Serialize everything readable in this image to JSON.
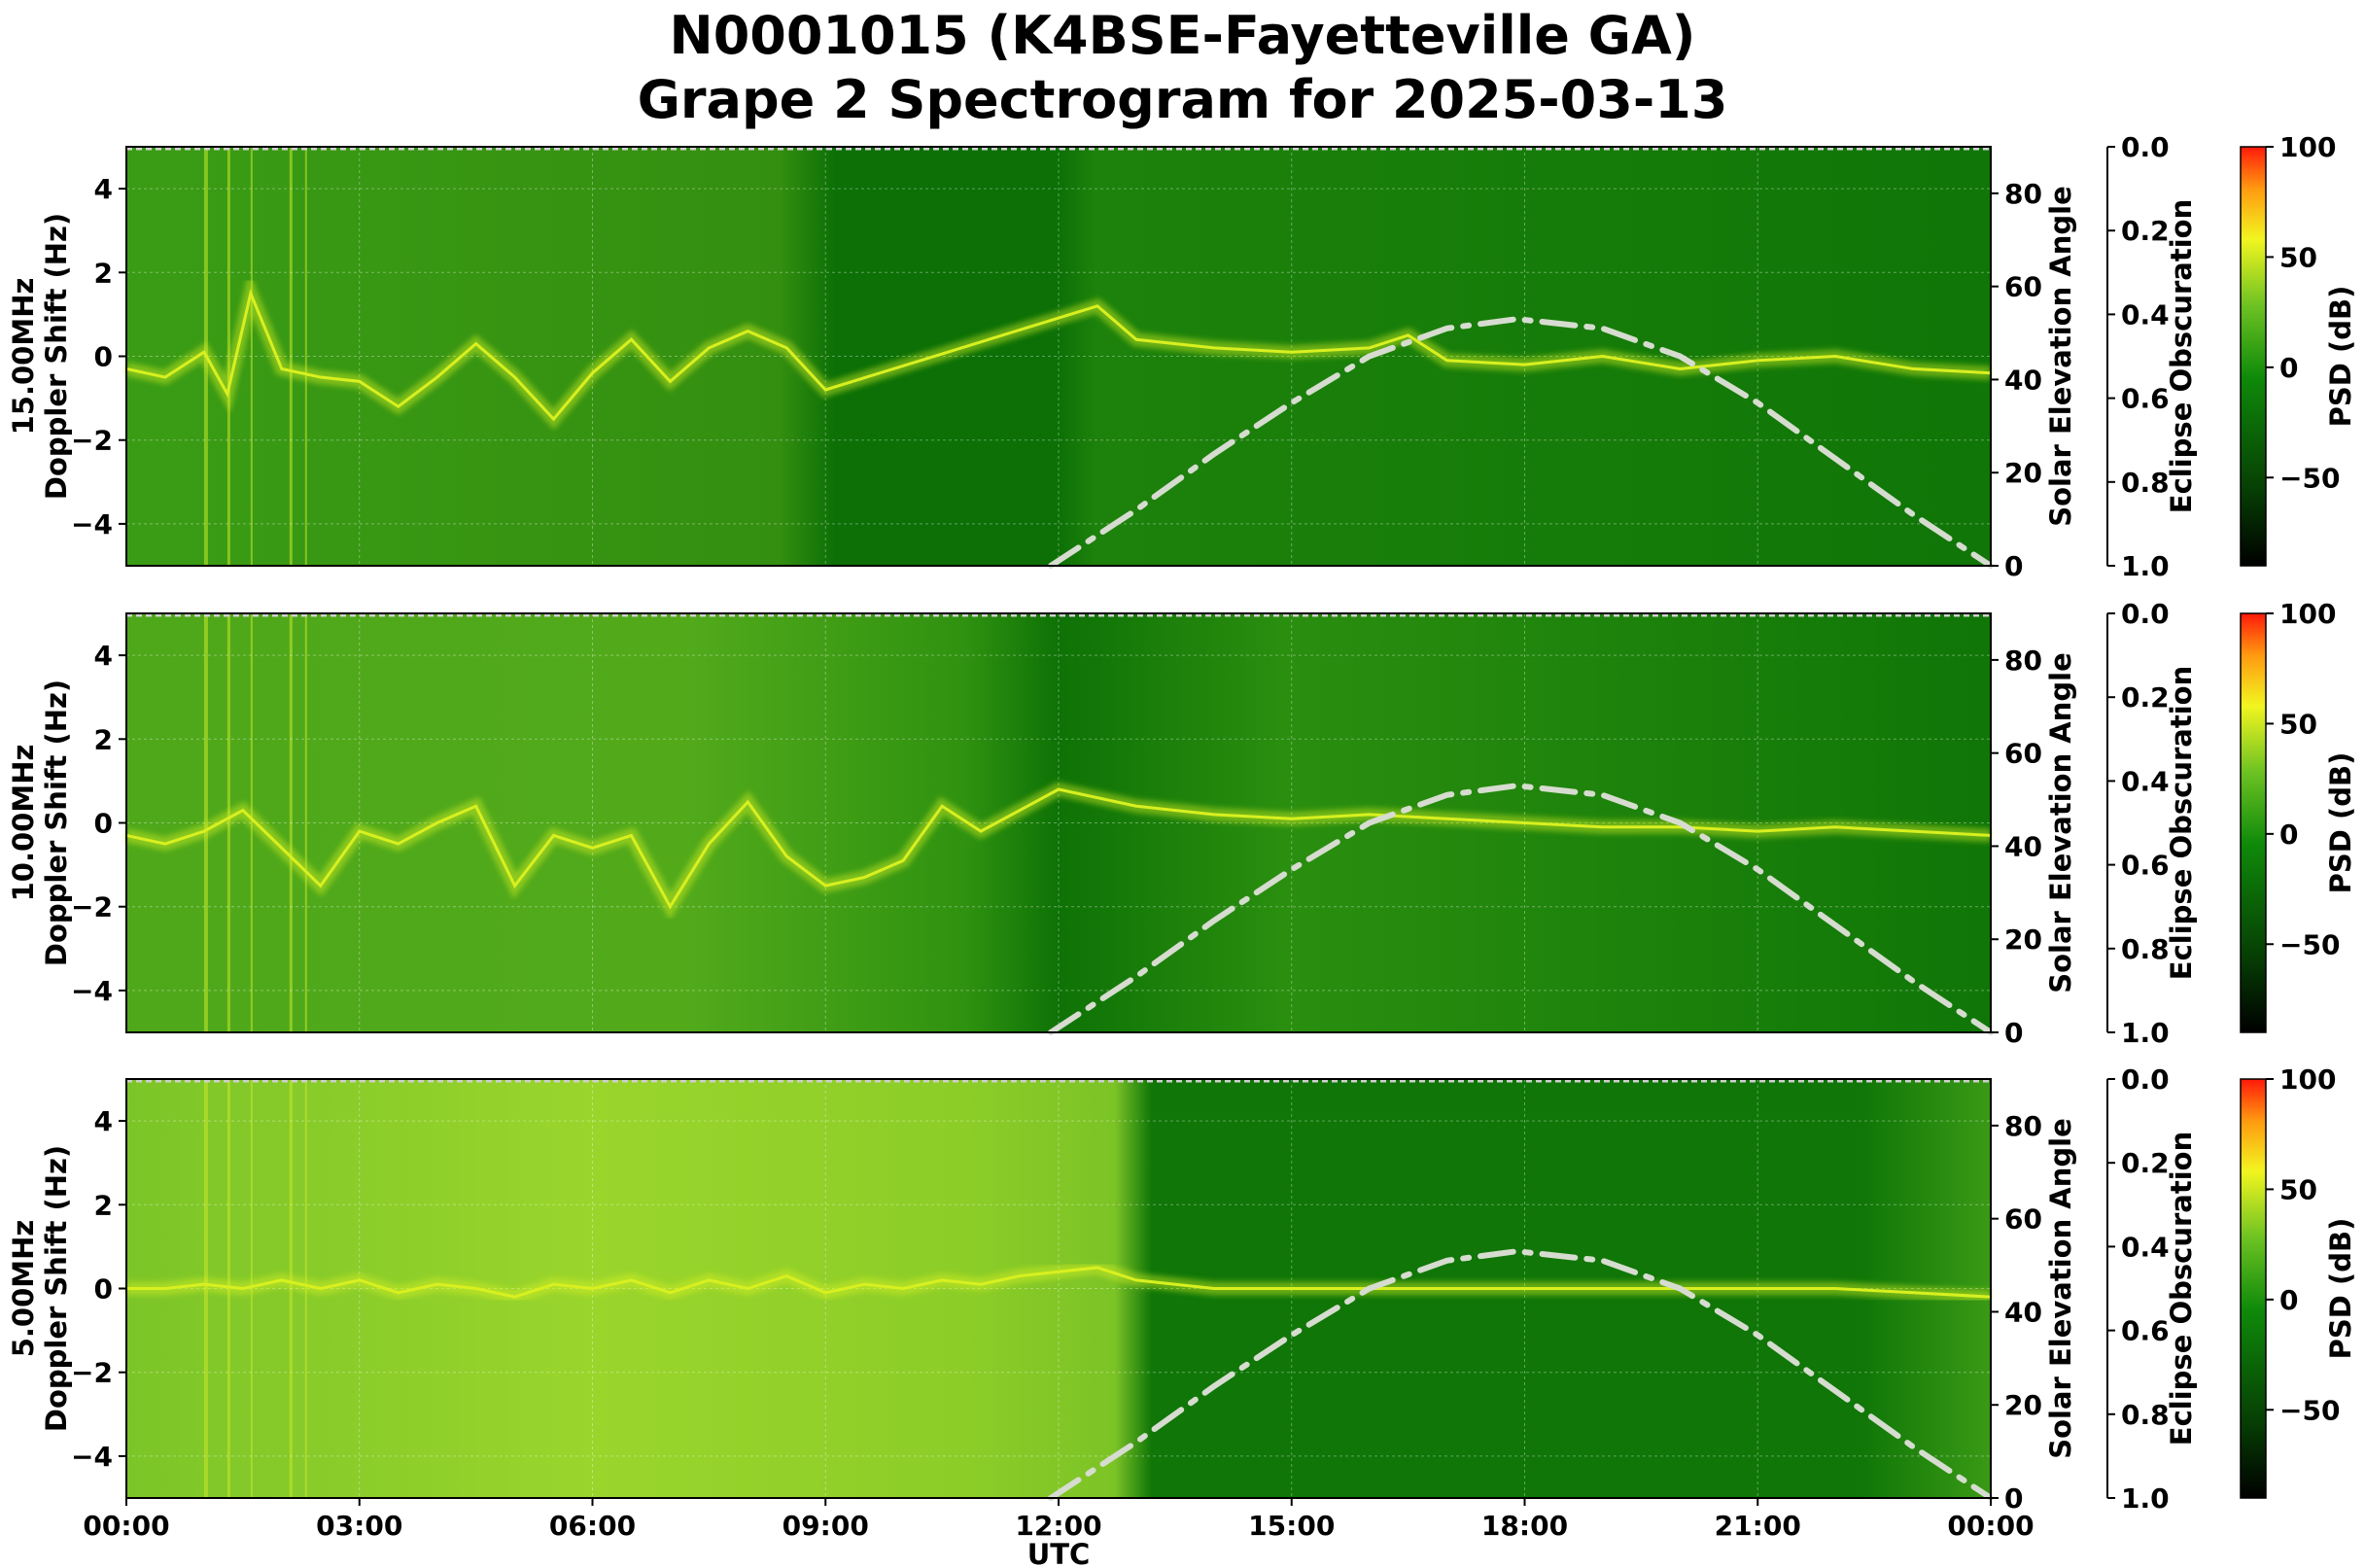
{
  "title": {
    "line1": "N0001015 (K4BSE-Fayetteville GA)",
    "line2": "Grape 2 Spectrogram for 2025-03-13"
  },
  "chart_data": {
    "type": "heatmap",
    "xlabel": "UTC",
    "x_ticks": [
      "00:00",
      "03:00",
      "06:00",
      "09:00",
      "12:00",
      "15:00",
      "18:00",
      "21:00",
      "00:00"
    ],
    "x_range_hours": [
      0,
      24
    ],
    "colors": {
      "background_low": "#0a6e06",
      "background_mid": "#2f9a10",
      "signal": "#d8f020",
      "hot": "#ff3010",
      "curve": "#d6dccf"
    },
    "panels": [
      {
        "ylabel": "15.00MHz\nDoppler Shift (Hz)",
        "ylim": [
          -5,
          5
        ],
        "y_ticks": [
          "4",
          "2",
          "0",
          "−2",
          "−4"
        ],
        "y_tick_values": [
          4,
          2,
          0,
          -2,
          -4
        ],
        "right_label": "Solar Elevation Angle",
        "right_ylim": [
          0,
          90
        ],
        "right_ticks": [
          "0",
          "20",
          "40",
          "60",
          "80"
        ],
        "right_tick_values": [
          0,
          20,
          40,
          60,
          80
        ],
        "eclipse_label": "Eclipse Obscuration",
        "eclipse_ticks": [
          "0.0",
          "0.2",
          "0.4",
          "0.6",
          "0.8",
          "1.0"
        ],
        "colorbar_label": "PSD (dB)",
        "colorbar_ticks": [
          "100",
          "50",
          "0",
          "−50"
        ],
        "colorbar_tick_values": [
          100,
          50,
          0,
          -50
        ],
        "colorbar_range": [
          -90,
          100
        ]
      },
      {
        "ylabel": "10.00MHz\nDoppler Shift (Hz)",
        "ylim": [
          -5,
          5
        ],
        "y_ticks": [
          "4",
          "2",
          "0",
          "−2",
          "−4"
        ],
        "y_tick_values": [
          4,
          2,
          0,
          -2,
          -4
        ],
        "right_label": "Solar Elevation Angle",
        "right_ylim": [
          0,
          90
        ],
        "right_ticks": [
          "0",
          "20",
          "40",
          "60",
          "80"
        ],
        "right_tick_values": [
          0,
          20,
          40,
          60,
          80
        ],
        "eclipse_label": "Eclipse Obscuration",
        "eclipse_ticks": [
          "0.0",
          "0.2",
          "0.4",
          "0.6",
          "0.8",
          "1.0"
        ],
        "colorbar_label": "PSD (dB)",
        "colorbar_ticks": [
          "100",
          "50",
          "0",
          "−50"
        ],
        "colorbar_tick_values": [
          100,
          50,
          0,
          -50
        ],
        "colorbar_range": [
          -90,
          100
        ]
      },
      {
        "ylabel": "5.00MHz\nDoppler Shift (Hz)",
        "ylim": [
          -5,
          5
        ],
        "y_ticks": [
          "4",
          "2",
          "0",
          "−2",
          "−4"
        ],
        "y_tick_values": [
          4,
          2,
          0,
          -2,
          -4
        ],
        "right_label": "Solar Elevation Angle",
        "right_ylim": [
          0,
          90
        ],
        "right_ticks": [
          "0",
          "20",
          "40",
          "60",
          "80"
        ],
        "right_tick_values": [
          0,
          20,
          40,
          60,
          80
        ],
        "eclipse_label": "Eclipse Obscuration",
        "eclipse_ticks": [
          "0.0",
          "0.2",
          "0.4",
          "0.6",
          "0.8",
          "1.0"
        ],
        "colorbar_label": "PSD (dB)",
        "colorbar_ticks": [
          "100",
          "50",
          "0",
          "−50"
        ],
        "colorbar_tick_values": [
          100,
          50,
          0,
          -50
        ],
        "colorbar_range": [
          -90,
          100
        ]
      }
    ],
    "solar_elevation": {
      "hours": [
        11.9,
        13,
        14,
        15,
        16,
        17,
        17.9,
        19,
        20,
        21,
        22,
        23,
        24
      ],
      "degrees": [
        0,
        12,
        24,
        35,
        45,
        51,
        53,
        51,
        45,
        35,
        23,
        11,
        0
      ]
    },
    "doppler_trace": {
      "15MHz": {
        "hours": [
          0,
          0.5,
          1,
          1.3,
          1.6,
          2,
          2.5,
          3,
          3.5,
          4,
          4.5,
          5,
          5.5,
          6,
          6.5,
          7,
          7.5,
          8,
          8.5,
          9,
          12.5,
          13,
          14,
          15,
          16,
          16.5,
          17,
          18,
          19,
          20,
          21,
          22,
          23,
          24
        ],
        "doppler": [
          -0.3,
          -0.5,
          0.1,
          -0.9,
          1.5,
          -0.3,
          -0.5,
          -0.6,
          -1.2,
          -0.5,
          0.3,
          -0.5,
          -1.5,
          -0.4,
          0.4,
          -0.6,
          0.2,
          0.6,
          0.2,
          -0.8,
          1.2,
          0.4,
          0.2,
          0.1,
          0.2,
          0.5,
          -0.1,
          -0.2,
          0.0,
          -0.3,
          -0.1,
          0.0,
          -0.3,
          -0.4
        ]
      },
      "10MHz": {
        "hours": [
          0,
          0.5,
          1,
          1.5,
          2,
          2.5,
          3,
          3.5,
          4,
          4.5,
          5,
          5.5,
          6,
          6.5,
          7,
          7.5,
          8,
          8.5,
          9,
          9.5,
          10,
          10.5,
          11,
          11.5,
          12,
          13,
          14,
          15,
          16,
          17,
          18,
          19,
          20,
          21,
          22,
          23,
          24
        ],
        "doppler": [
          -0.3,
          -0.5,
          -0.2,
          0.3,
          -0.6,
          -1.5,
          -0.2,
          -0.5,
          0.0,
          0.4,
          -1.5,
          -0.3,
          -0.6,
          -0.3,
          -2.0,
          -0.5,
          0.5,
          -0.8,
          -1.5,
          -1.3,
          -0.9,
          0.4,
          -0.2,
          0.3,
          0.8,
          0.4,
          0.2,
          0.1,
          0.2,
          0.1,
          0.0,
          -0.1,
          -0.1,
          -0.2,
          -0.1,
          -0.2,
          -0.3
        ]
      },
      "5MHz": {
        "hours": [
          0,
          0.5,
          1,
          1.5,
          2,
          2.5,
          3,
          3.5,
          4,
          4.5,
          5,
          5.5,
          6,
          6.5,
          7,
          7.5,
          8,
          8.5,
          9,
          9.5,
          10,
          10.5,
          11,
          11.5,
          12,
          12.5,
          13,
          14,
          15,
          16,
          17,
          18,
          19,
          20,
          21,
          22,
          23,
          24
        ],
        "doppler": [
          0.0,
          0.0,
          0.1,
          0.0,
          0.2,
          0.0,
          0.2,
          -0.1,
          0.1,
          0.0,
          -0.2,
          0.1,
          0.0,
          0.2,
          -0.1,
          0.2,
          0.0,
          0.3,
          -0.1,
          0.1,
          0.0,
          0.2,
          0.1,
          0.3,
          0.4,
          0.5,
          0.2,
          0.0,
          0.0,
          0.0,
          0.0,
          0.0,
          0.0,
          0.0,
          0.0,
          0.0,
          -0.1,
          -0.2
        ]
      }
    }
  }
}
